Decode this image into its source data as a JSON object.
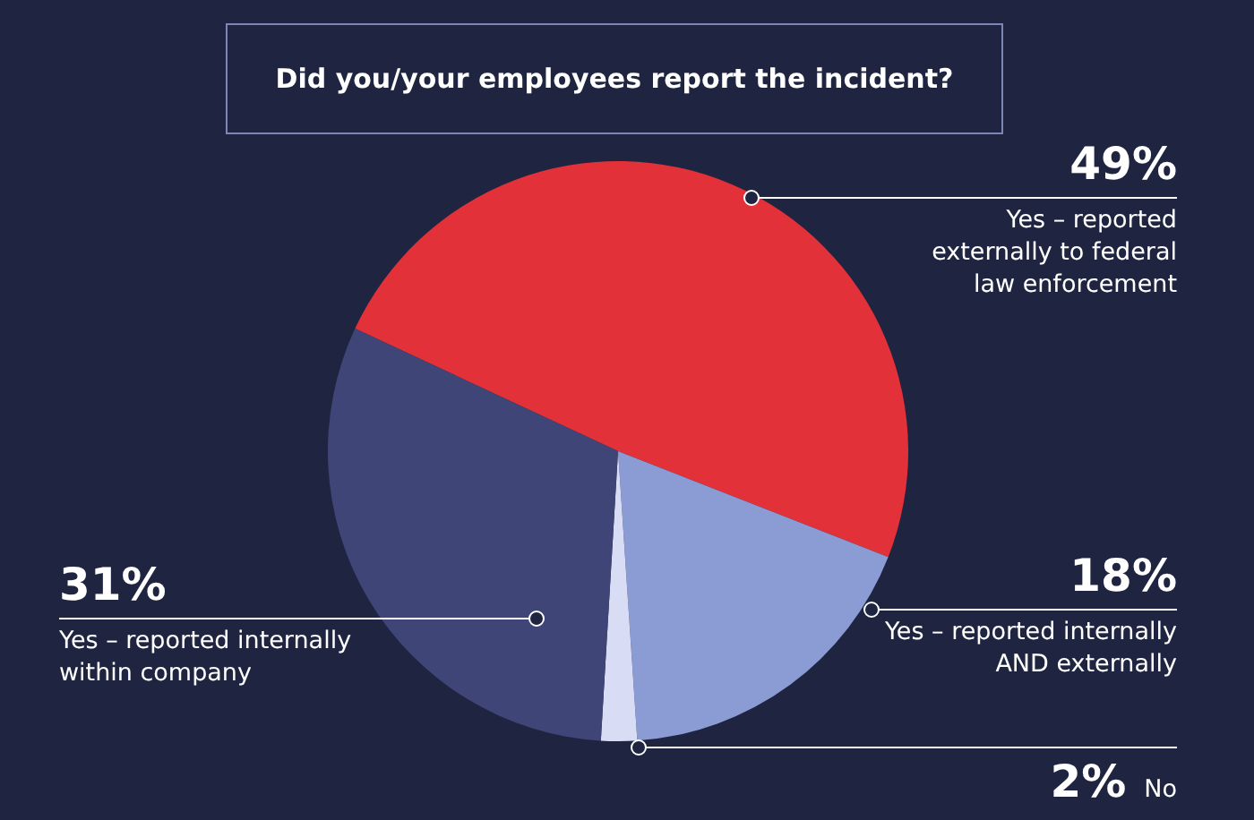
{
  "chart_data": {
    "type": "pie",
    "title": "Did you/your employees report the incident?",
    "categories": [
      "Yes – reported externally to federal law enforcement",
      "Yes – reported internally AND externally",
      "No",
      "Yes – reported internally within company"
    ],
    "values": [
      49,
      18,
      2,
      31
    ],
    "colors": [
      "#e3313a",
      "#8b9bd3",
      "#d9dcf5",
      "#3f4677"
    ],
    "value_labels": [
      "49%",
      "18%",
      "2%",
      "31%"
    ]
  }
}
